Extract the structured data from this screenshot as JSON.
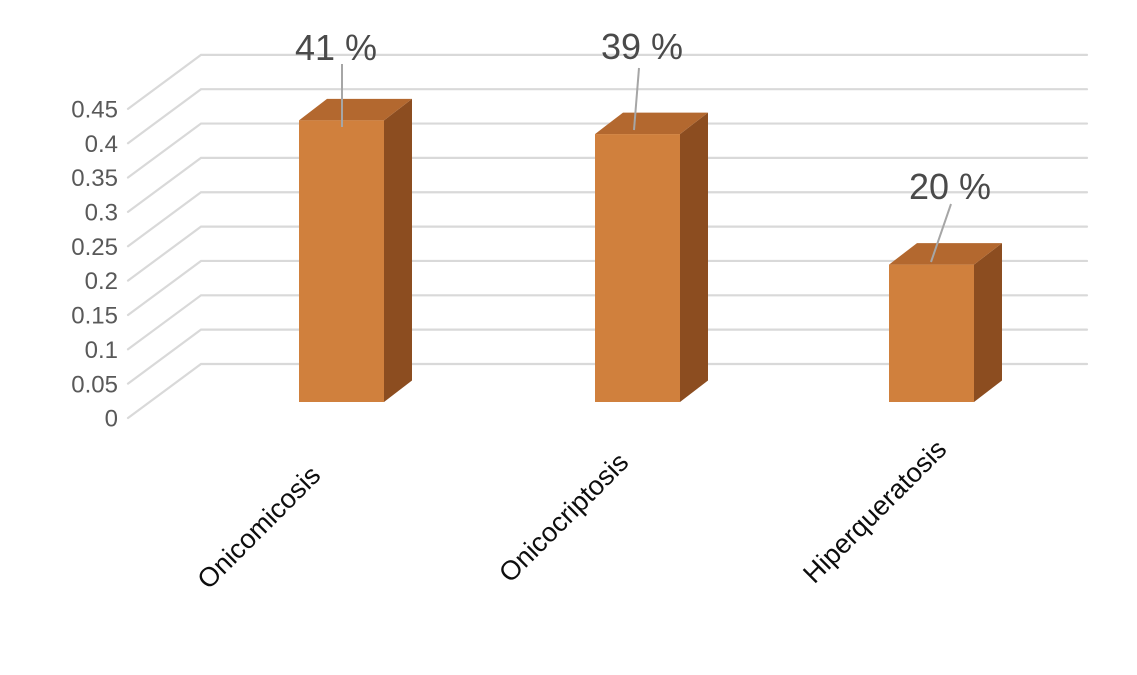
{
  "chart_data": {
    "type": "bar",
    "variant": "3d-column",
    "title": "",
    "categories": [
      "Onicomicosis",
      "Onicocriptosis",
      "Hiperqueratosis"
    ],
    "values": [
      0.41,
      0.39,
      0.2
    ],
    "data_labels": [
      "41 %",
      "39 %",
      "20 %"
    ],
    "y_ticks": [
      "0",
      "0.05",
      "0.1",
      "0.15",
      "0.2",
      "0.25",
      "0.3",
      "0.35",
      "0.4",
      "0.45"
    ],
    "y_tick_values": [
      0,
      0.05,
      0.1,
      0.15,
      0.2,
      0.25,
      0.3,
      0.35,
      0.4,
      0.45
    ],
    "ylim": [
      0,
      0.45
    ],
    "grid": true,
    "legend": false,
    "colors": {
      "bar_front": "#d0803d",
      "bar_top": "#b3682f",
      "bar_side": "#8c4d20",
      "gridline": "#d9d9d9",
      "leader_line": "#a6a6a6",
      "tick_text": "#595959",
      "data_label_text": "#4a4a4a",
      "category_text": "#0d0d0d",
      "background": "#ffffff"
    }
  }
}
